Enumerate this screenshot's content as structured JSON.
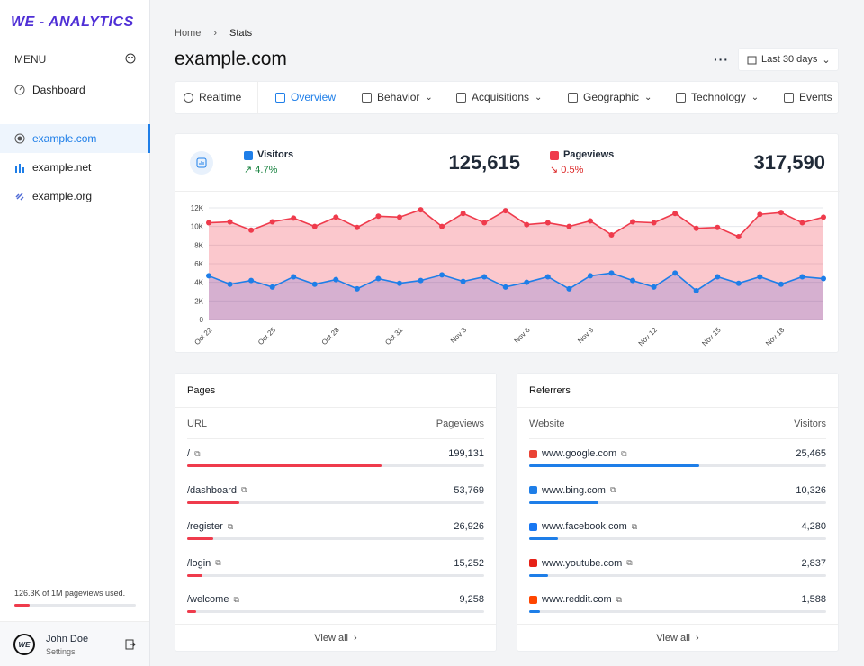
{
  "sidebar": {
    "brand": "WE - ANALYTICS",
    "menu_label": "MENU",
    "menu": [
      "Dashboard"
    ],
    "sites": [
      "example.com",
      "example.net",
      "example.org"
    ],
    "usage": "126.3K of 1M pageviews used.",
    "user": {
      "avatar": "WE",
      "name": "John Doe",
      "role": "Settings"
    }
  },
  "header": {
    "breadcrumb": [
      "Home",
      "Stats"
    ],
    "title": "example.com",
    "range": "Last 30 days"
  },
  "tabs": [
    "Realtime",
    "Overview",
    "Behavior",
    "Acquisitions",
    "Geographic",
    "Technology",
    "Events"
  ],
  "stats": [
    {
      "value": "125,615",
      "change": "4.7%"
    },
    {
      "value": "317,590",
      "change": "0.5%"
    }
  ],
  "chart_data": {
    "type": "line",
    "area": true,
    "categories": [
      "Oct 22",
      null,
      null,
      "Oct 25",
      null,
      null,
      "Oct 28",
      null,
      null,
      "Oct 31",
      null,
      null,
      "Nov 3",
      null,
      null,
      "Nov 6",
      null,
      null,
      "Nov 9",
      null,
      null,
      "Nov 12",
      null,
      null,
      "Nov 15",
      null,
      null,
      "Nov 18",
      null,
      null
    ],
    "series": [
      {
        "name": "Pageviews",
        "color": "#ef3b4c",
        "values": [
          10400,
          10500,
          9600,
          10500,
          10900,
          10000,
          11000,
          9900,
          11100,
          11000,
          11800,
          10000,
          11400,
          10400,
          11700,
          10200,
          10400,
          10000,
          10600,
          9100,
          10500,
          10400,
          11400,
          9800,
          9900,
          8900,
          11300,
          11500,
          10400,
          11000
        ]
      },
      {
        "name": "Visitors",
        "color": "#1e7ee8",
        "values": [
          4700,
          3800,
          4200,
          3500,
          4600,
          3800,
          4300,
          3300,
          4400,
          3900,
          4200,
          4800,
          4100,
          4600,
          3500,
          4000,
          4600,
          3300,
          4700,
          5000,
          4200,
          3500,
          5000,
          3100,
          4600,
          3900,
          4600,
          3800,
          4600,
          4400
        ]
      }
    ],
    "ylim": [
      0,
      12000
    ],
    "yticks": [
      0,
      {
        "value": 2000,
        "label": "2K"
      },
      {
        "value": 4000,
        "label": "4K"
      },
      {
        "value": 6000,
        "label": "6K"
      },
      {
        "value": 8000,
        "label": "8K"
      },
      {
        "value": 10000,
        "label": "10K"
      },
      {
        "value": 12000,
        "label": "12K"
      }
    ],
    "grid": true
  },
  "pages": {
    "title": "Pages",
    "columns": [
      "URL",
      "Pageviews"
    ],
    "color": "#ef3b4c",
    "view_all": "View all",
    "rows": [
      {
        "label": "/",
        "value": 199131,
        "value_label": "199,131"
      },
      {
        "label": "/dashboard",
        "value": 53769,
        "value_label": "53,769"
      },
      {
        "label": "/register",
        "value": 26926,
        "value_label": "26,926"
      },
      {
        "label": "/login",
        "value": 15252,
        "value_label": "15,252"
      },
      {
        "label": "/welcome",
        "value": 9258,
        "value_label": "9,258"
      }
    ]
  },
  "referrers": {
    "title": "Referrers",
    "columns": [
      "Website",
      "Visitors"
    ],
    "color": "#1e7ee8",
    "view_all": "View all",
    "rows": [
      {
        "label": "www.google.com",
        "value": 25465,
        "value_label": "25,465"
      },
      {
        "label": "www.bing.com",
        "value": 10326,
        "value_label": "10,326"
      },
      {
        "label": "www.facebook.com",
        "value": 4280,
        "value_label": "4,280"
      },
      {
        "label": "www.youtube.com",
        "value": 2837,
        "value_label": "2,837"
      },
      {
        "label": "www.reddit.com",
        "value": 1588,
        "value_label": "1,588"
      }
    ]
  }
}
